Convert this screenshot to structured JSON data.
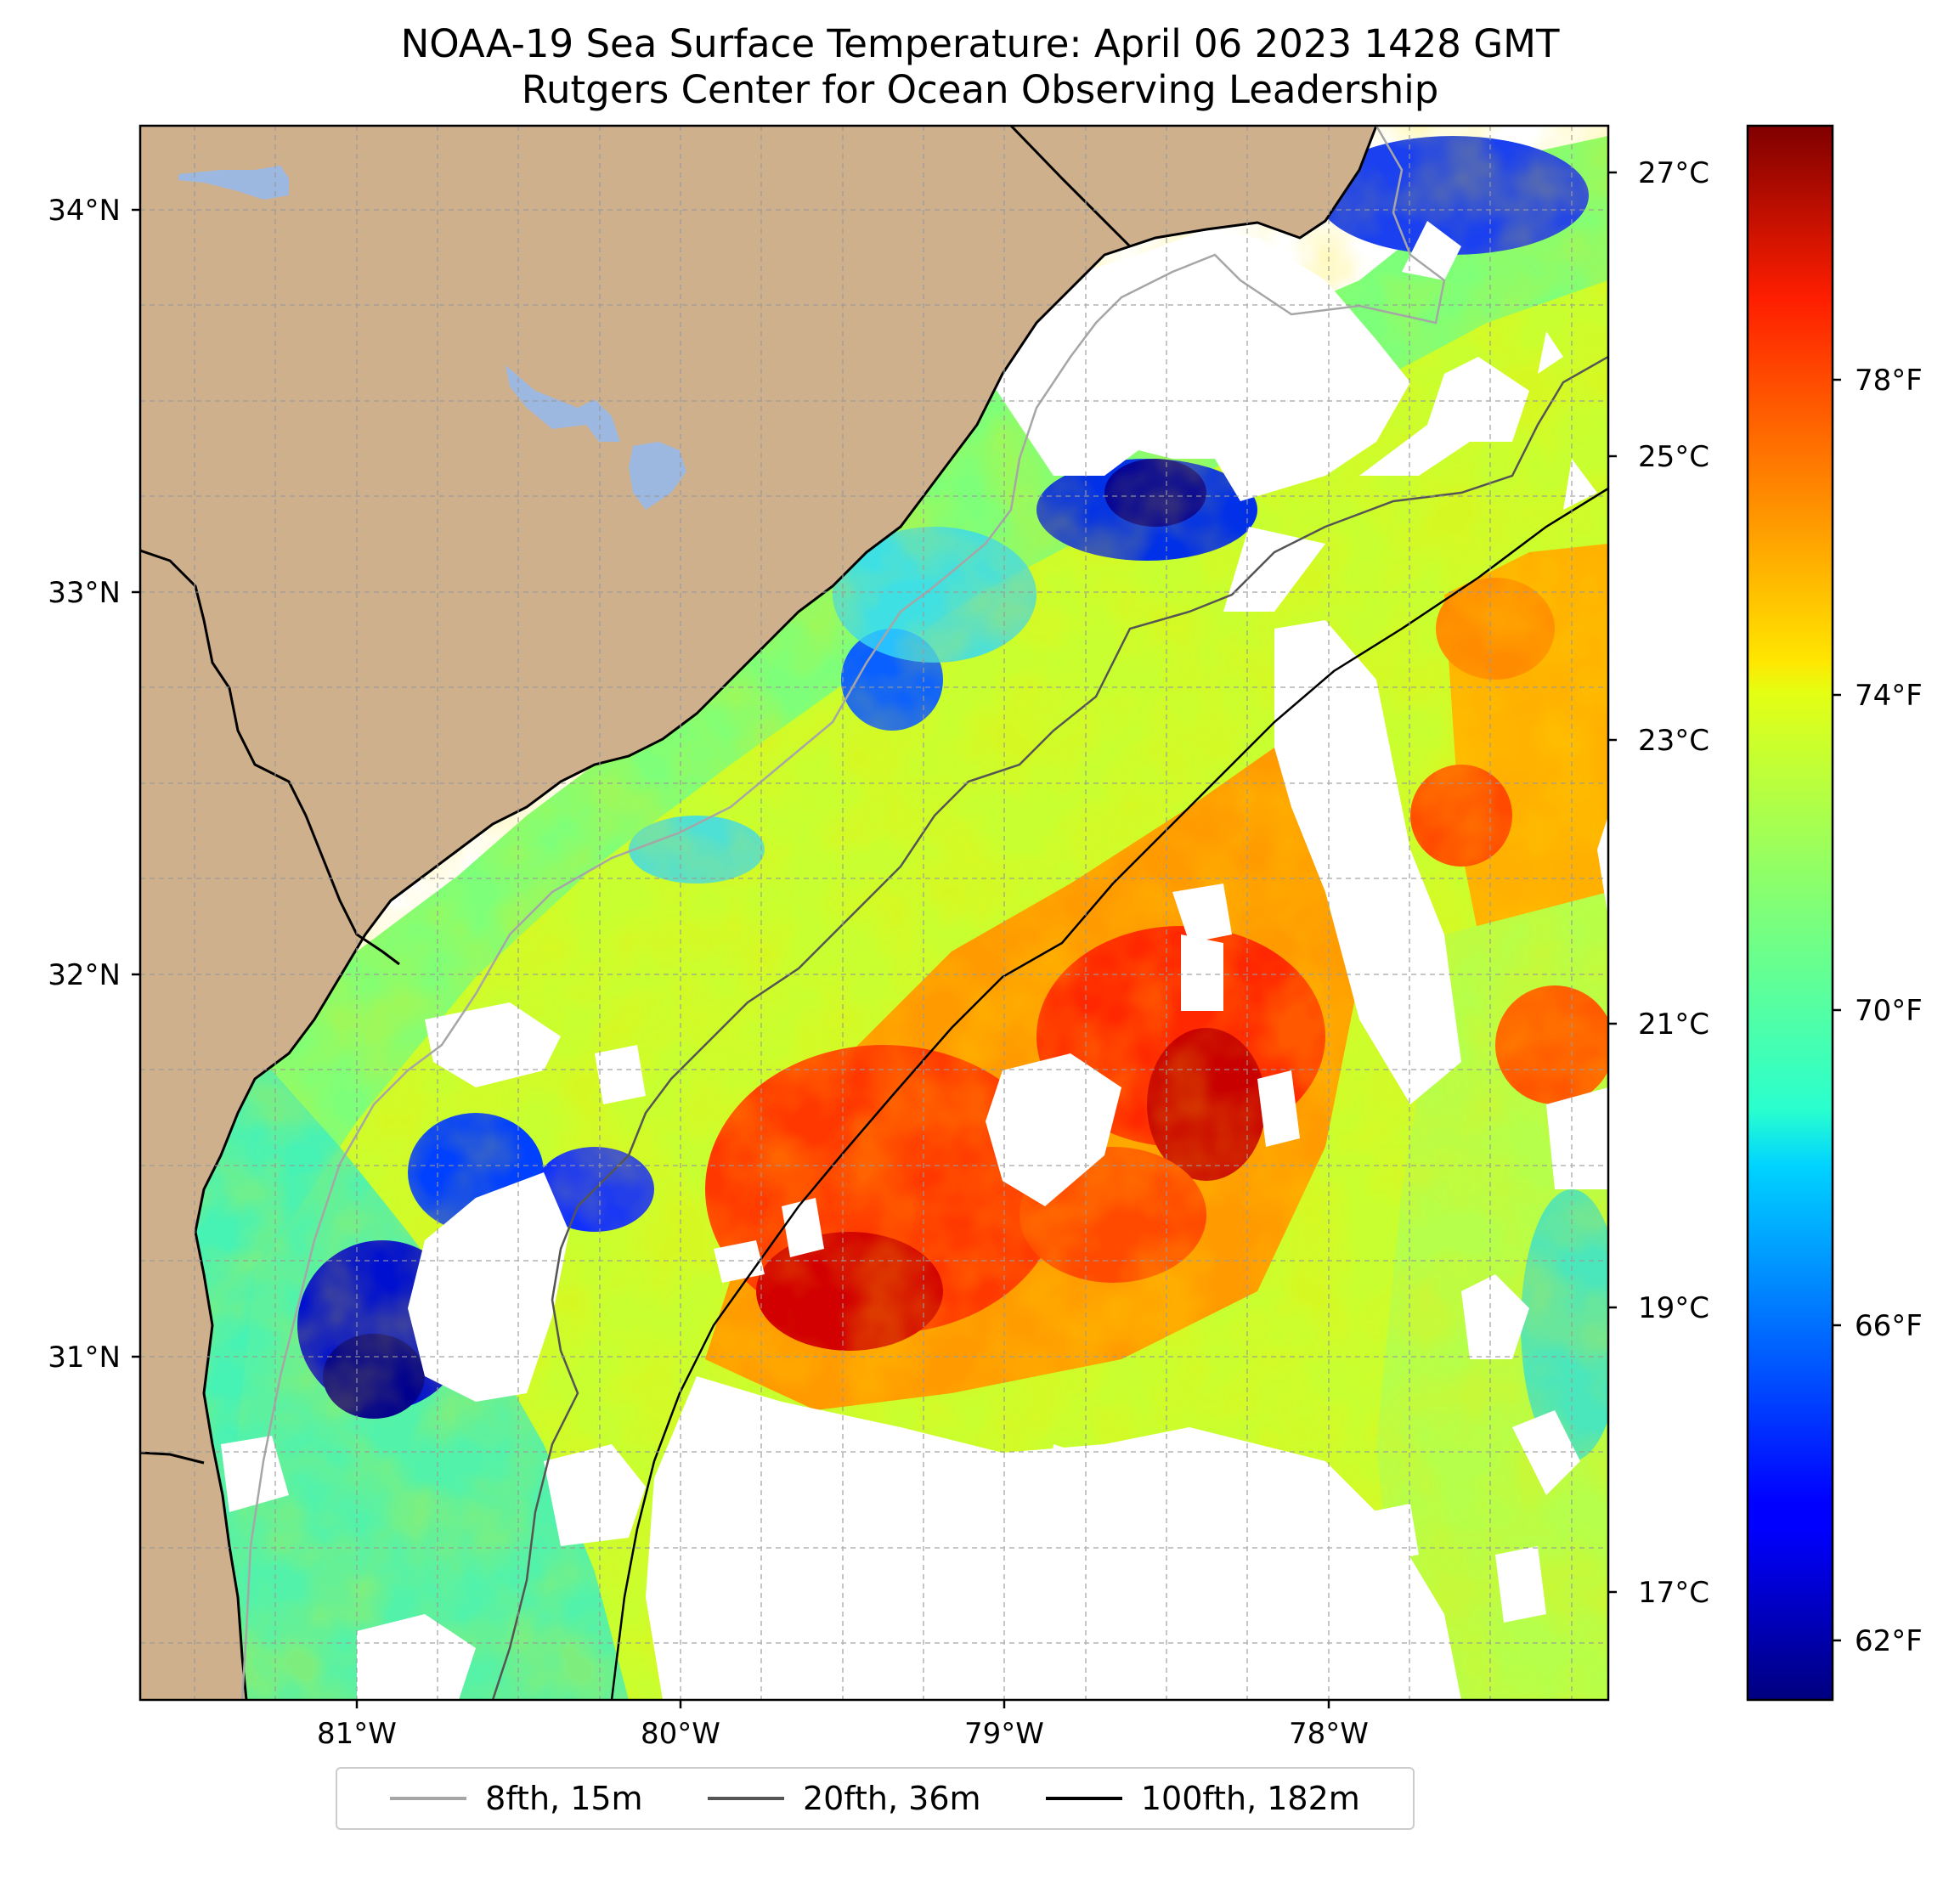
{
  "title": "NOAA-19 Sea Surface Temperature: April 06 2023 1428 GMT",
  "subtitle": "Rutgers Center for Ocean Observing Leadership",
  "map": {
    "lon_range": [
      -81.68,
      -77.15
    ],
    "lat_range": [
      30.07,
      34.22
    ],
    "lat_ticks": [
      {
        "value": 34,
        "label": "34°N"
      },
      {
        "value": 33,
        "label": "33°N"
      },
      {
        "value": 32,
        "label": "32°N"
      },
      {
        "value": 31,
        "label": "31°N"
      }
    ],
    "lon_ticks": [
      {
        "value": -81,
        "label": "81°W"
      },
      {
        "value": -80,
        "label": "80°W"
      },
      {
        "value": -79,
        "label": "79°W"
      },
      {
        "value": -78,
        "label": "78°W"
      }
    ],
    "land_color": "#cfb08c",
    "water_body_color": "#9db8e0",
    "grid_color": "#9a9a9a"
  },
  "colorbar": {
    "range_c": [
      16.4,
      27.5
    ],
    "celsius_ticks": [
      {
        "value": 27,
        "label": "27°C"
      },
      {
        "value": 25,
        "label": "25°C"
      },
      {
        "value": 23,
        "label": "23°C"
      },
      {
        "value": 21,
        "label": "21°C"
      },
      {
        "value": 19,
        "label": "19°C"
      },
      {
        "value": 17,
        "label": "17°C"
      }
    ],
    "fahrenheit_ticks": [
      {
        "value": 78,
        "label": "78°F"
      },
      {
        "value": 74,
        "label": "74°F"
      },
      {
        "value": 70,
        "label": "70°F"
      },
      {
        "value": 66,
        "label": "66°F"
      },
      {
        "value": 62,
        "label": "62°F"
      }
    ],
    "colormap": "jet"
  },
  "legend": [
    {
      "label": "8fth, 15m",
      "color": "#a6a6a6"
    },
    {
      "label": "20fth, 36m",
      "color": "#555555"
    },
    {
      "label": "100fth, 182m",
      "color": "#000000"
    }
  ]
}
